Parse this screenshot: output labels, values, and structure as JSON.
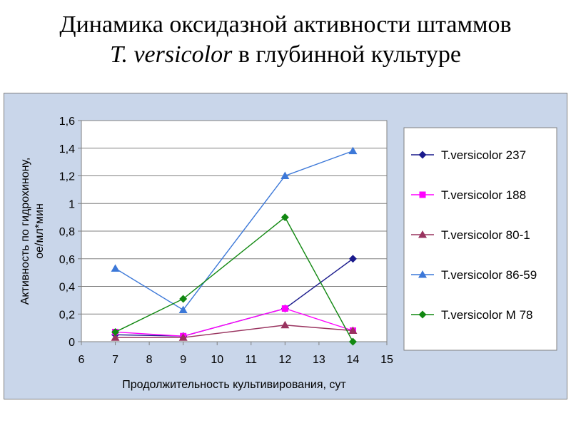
{
  "slide": {
    "title_line1": "Динамика оксидазной активности штаммов",
    "title_line2_italic": "T. versicolor",
    "title_line2_rest": " в глубинной культуре"
  },
  "chart_data": {
    "type": "line",
    "xlabel": "Продолжительность культивирования, сут",
    "ylabel_line1": "Активность по гидрохинону,",
    "ylabel_line2": "ое/мл*мин",
    "xlim": [
      6,
      15
    ],
    "ylim": [
      0,
      1.6
    ],
    "xticks": [
      "6",
      "7",
      "8",
      "9",
      "10",
      "11",
      "12",
      "13",
      "14",
      "15"
    ],
    "yticks": [
      "0",
      "0,2",
      "0,4",
      "0,6",
      "0,8",
      "1",
      "1,2",
      "1,4",
      "1,6"
    ],
    "grid": "horizontal",
    "legend_position": "right",
    "series": [
      {
        "name": "T.versicolor 237",
        "color": "#1a1a8c",
        "marker": "diamond",
        "x": [
          7,
          9,
          12,
          14
        ],
        "y": [
          0.05,
          0.04,
          0.24,
          0.6
        ]
      },
      {
        "name": "T.versicolor 188",
        "color": "#ff00ff",
        "marker": "square",
        "x": [
          7,
          9,
          12,
          14
        ],
        "y": [
          0.07,
          0.04,
          0.24,
          0.08
        ]
      },
      {
        "name": "T.versicolor 80-1",
        "color": "#99335f",
        "marker": "triangle",
        "x": [
          7,
          9,
          12,
          14
        ],
        "y": [
          0.03,
          0.03,
          0.12,
          0.08
        ]
      },
      {
        "name": "T.versicolor 86-59",
        "color": "#3c78d8",
        "marker": "triangle",
        "x": [
          7,
          9,
          12,
          14
        ],
        "y": [
          0.53,
          0.23,
          1.2,
          1.38
        ]
      },
      {
        "name": "T.versicolor M 78",
        "color": "#118811",
        "marker": "diamond",
        "x": [
          7,
          9,
          12,
          14
        ],
        "y": [
          0.07,
          0.31,
          0.9,
          0.0
        ]
      }
    ]
  }
}
